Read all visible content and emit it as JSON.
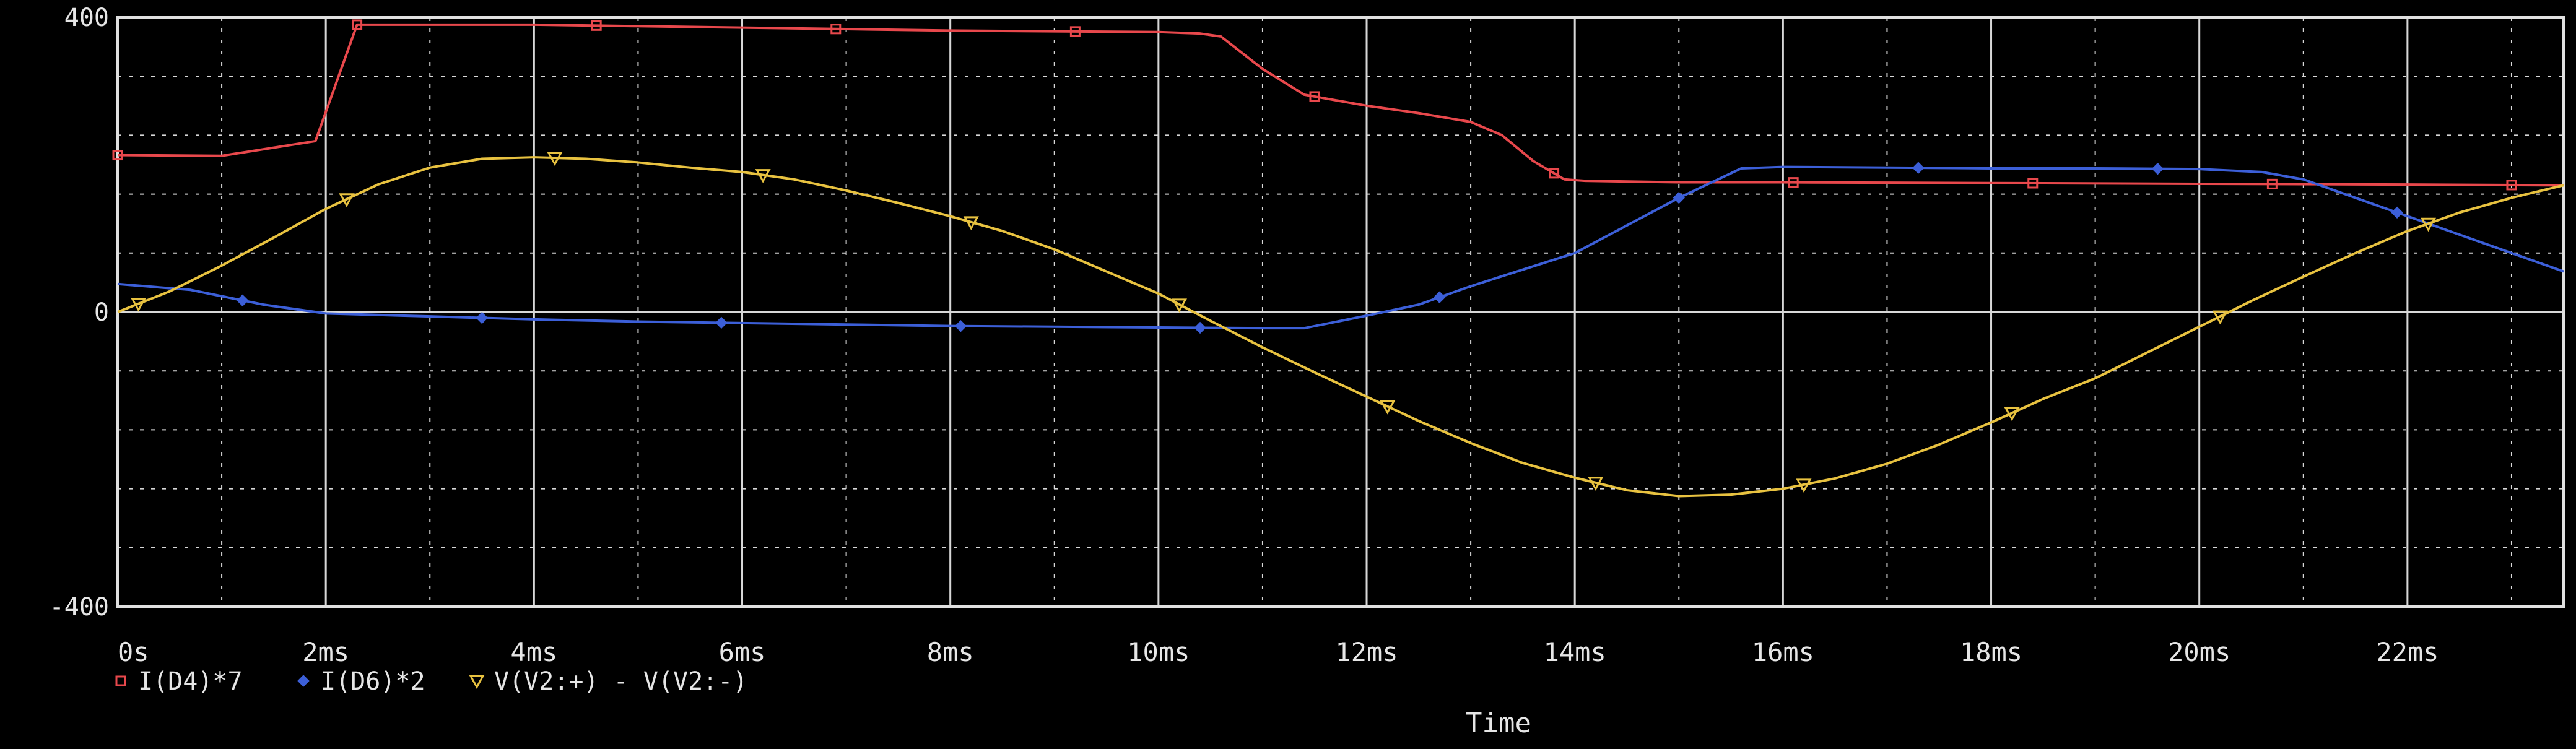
{
  "chart_data": {
    "type": "line",
    "xlabel": "Time",
    "ylabel": "",
    "xlim": [
      0,
      23.5
    ],
    "ylim": [
      -400,
      400
    ],
    "y_tick_labels": [
      "400",
      "0",
      "-400"
    ],
    "x_tick_labels": [
      "0s",
      "2ms",
      "4ms",
      "6ms",
      "8ms",
      "10ms",
      "12ms",
      "14ms",
      "16ms",
      "18ms",
      "20ms",
      "22ms"
    ],
    "grid": true,
    "legend_position": "bottom-left",
    "colors": {
      "background": "#000000",
      "grid": "#d8d8d8",
      "text": "#e6e6e6"
    },
    "series": [
      {
        "name": "I(D4)*7",
        "color": "#e8484c",
        "marker": "square",
        "x": [
          0,
          1.0,
          1.9,
          2.3,
          3.0,
          4.0,
          5.0,
          6.0,
          7.0,
          8.0,
          9.0,
          10.0,
          10.4,
          10.6,
          11.0,
          11.4,
          12.0,
          12.5,
          13.0,
          13.3,
          13.6,
          13.9,
          14.1,
          15.0,
          16.0,
          18.0,
          20.0,
          22.0,
          23.5
        ],
        "y": [
          213,
          212,
          232,
          390,
          390,
          390,
          388,
          386,
          384,
          382,
          381,
          380,
          378,
          374,
          330,
          295,
          280,
          270,
          258,
          240,
          205,
          180,
          178,
          176,
          176,
          175,
          174,
          173,
          172
        ]
      },
      {
        "name": "I(D6)*2",
        "color": "#3c5fd8",
        "marker": "diamond",
        "x": [
          0,
          0.7,
          1.4,
          2.0,
          3.0,
          4.0,
          5.0,
          6.0,
          7.0,
          8.0,
          9.0,
          10.0,
          11.0,
          11.4,
          12.0,
          12.5,
          13.0,
          14.0,
          15.0,
          15.6,
          16.0,
          17.0,
          18.0,
          19.0,
          20.0,
          20.6,
          21.0,
          22.0,
          23.5
        ],
        "y": [
          38,
          30,
          10,
          -2,
          -6,
          -10,
          -13,
          -15,
          -17,
          -19,
          -20,
          -21,
          -22,
          -22,
          -5,
          10,
          35,
          80,
          155,
          195,
          197,
          196,
          195,
          195,
          194,
          190,
          180,
          130,
          55
        ]
      },
      {
        "name": "V(V2:+) - V(V2:-)",
        "color": "#e8c240",
        "marker": "triangle",
        "x": [
          0,
          0.5,
          1.0,
          1.5,
          2.0,
          2.5,
          3.0,
          3.5,
          4.0,
          4.5,
          5.0,
          5.5,
          6.0,
          6.5,
          7.0,
          7.5,
          8.0,
          8.5,
          9.0,
          9.5,
          10.0,
          10.5,
          11.0,
          11.5,
          12.0,
          12.5,
          13.0,
          13.5,
          14.0,
          14.5,
          15.0,
          15.5,
          16.0,
          16.5,
          17.0,
          17.5,
          18.0,
          18.5,
          19.0,
          19.5,
          20.0,
          20.5,
          21.0,
          21.5,
          22.0,
          22.5,
          23.0,
          23.5
        ],
        "y": [
          0,
          28,
          63,
          101,
          140,
          173,
          196,
          208,
          210,
          208,
          203,
          196,
          190,
          180,
          165,
          148,
          130,
          110,
          85,
          55,
          25,
          -12,
          -48,
          -82,
          -115,
          -148,
          -178,
          -205,
          -225,
          -242,
          -250,
          -248,
          -240,
          -226,
          -206,
          -180,
          -150,
          -118,
          -90,
          -55,
          -20,
          15,
          48,
          80,
          110,
          135,
          155,
          172
        ]
      }
    ]
  }
}
